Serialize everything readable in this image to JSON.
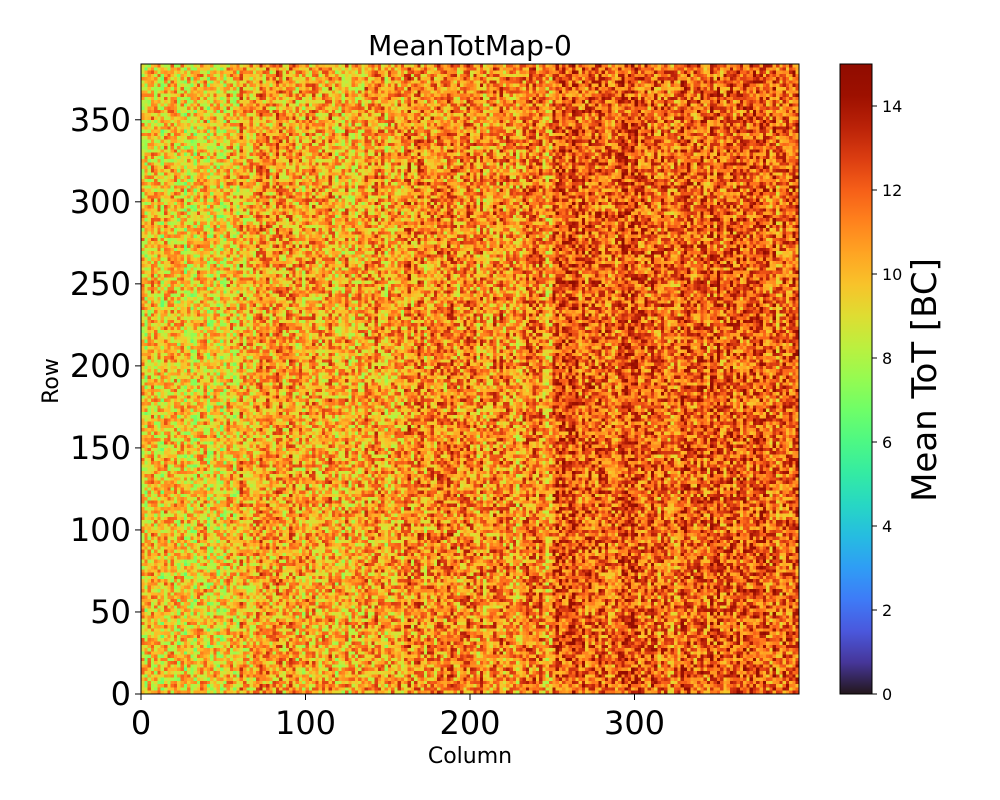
{
  "chart_data": {
    "type": "heatmap",
    "title": "MeanTotMap-0",
    "xlabel": "Column",
    "ylabel": "Row",
    "xlim": [
      0,
      400
    ],
    "ylim": [
      0,
      384
    ],
    "xticks": [
      0,
      100,
      200,
      300
    ],
    "yticks": [
      0,
      50,
      100,
      150,
      200,
      250,
      300,
      350
    ],
    "colorbar": {
      "label": "Mean ToT [BC]",
      "range": [
        0,
        15
      ],
      "ticks": [
        0,
        2,
        4,
        6,
        8,
        10,
        12,
        14
      ],
      "colormap": "turbo"
    },
    "value_profile": {
      "description_values_range": [
        7,
        15
      ],
      "column_bands": [
        {
          "columns": [
            0,
            60
          ],
          "typical_mean_tot": 9.5
        },
        {
          "columns": [
            60,
            160
          ],
          "typical_mean_tot": 10.5
        },
        {
          "columns": [
            160,
            250
          ],
          "typical_mean_tot": 11
        },
        {
          "columns": [
            250,
            400
          ],
          "typical_mean_tot": 12
        }
      ]
    },
    "grid": false
  }
}
